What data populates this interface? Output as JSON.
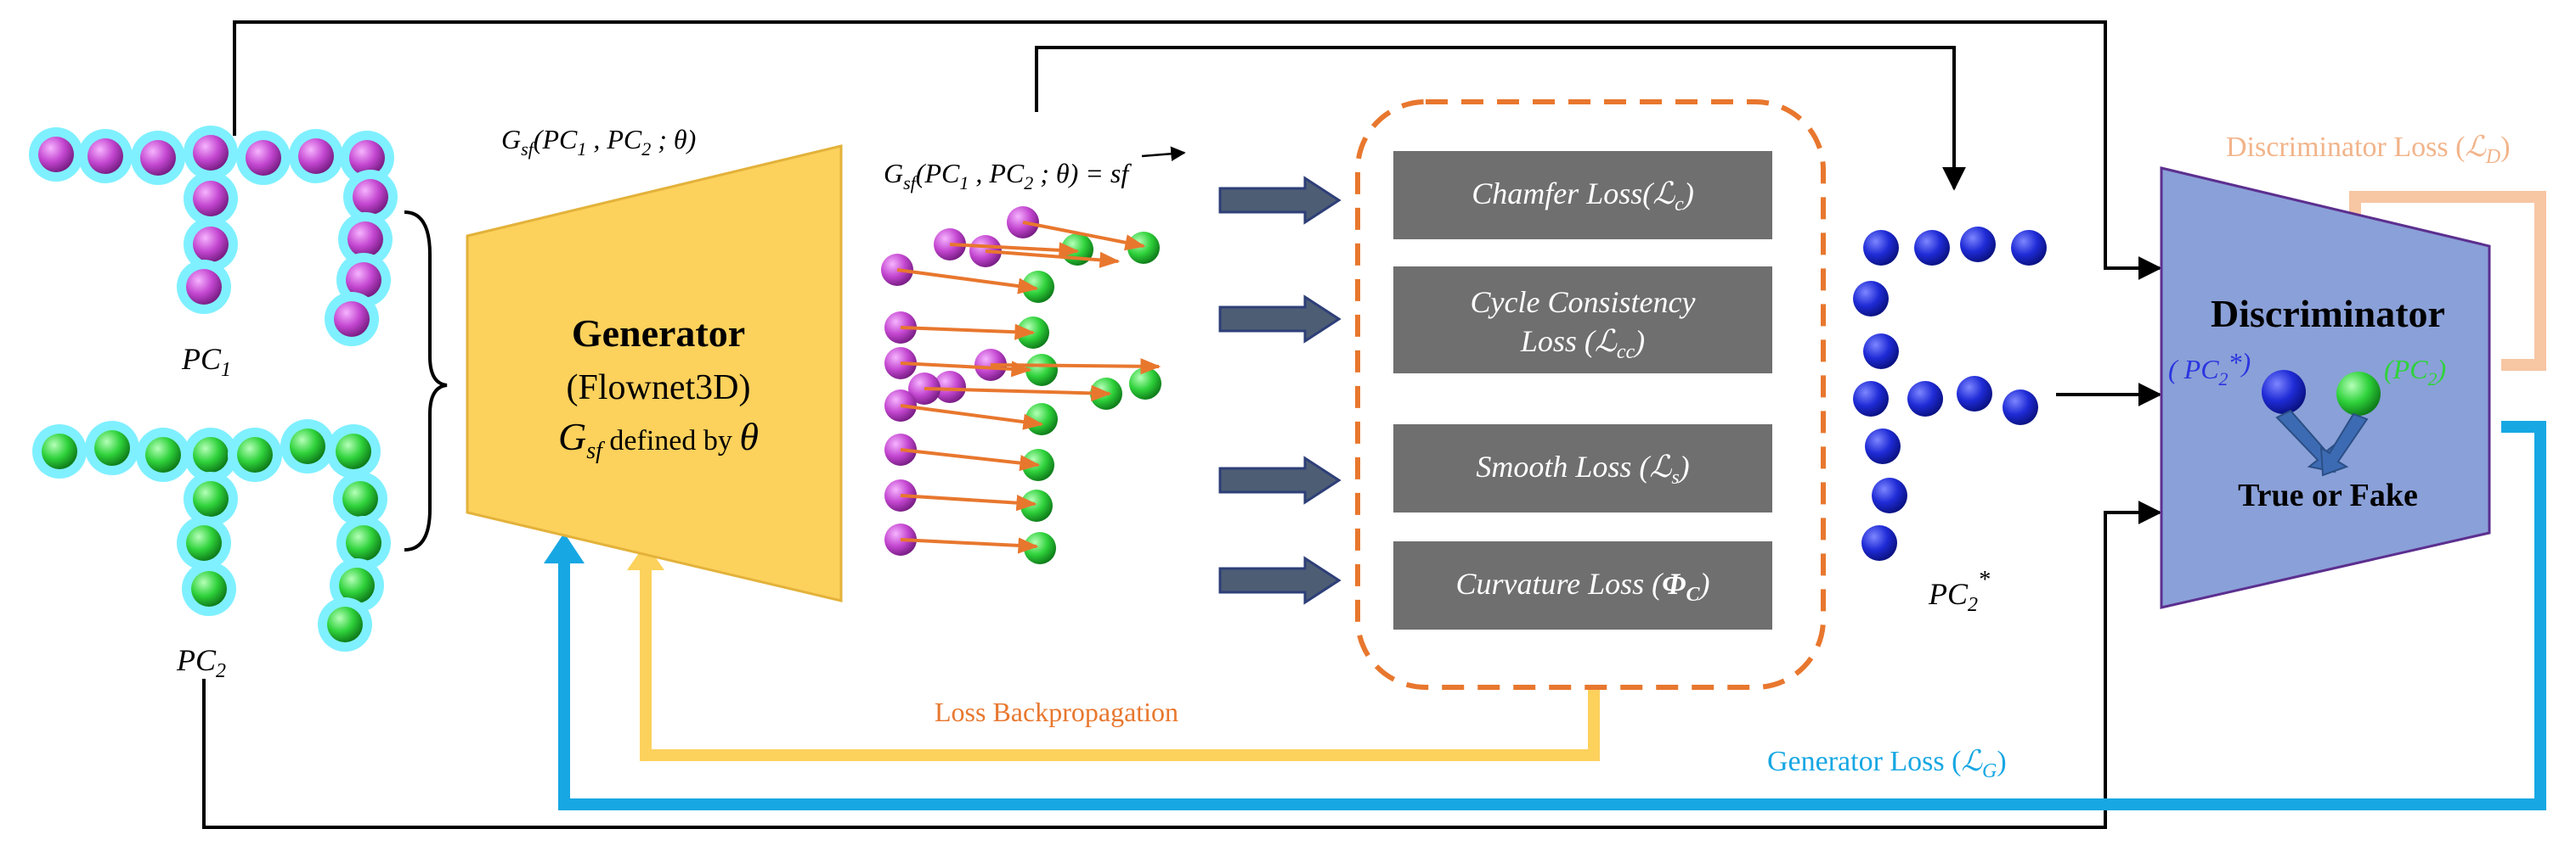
{
  "colors": {
    "magenta": "#c447d1",
    "green": "#2fd23b",
    "cyan_glow": "#7ff0ff",
    "blue_point": "#1f2bd6",
    "generator_fill": "#fcd15c",
    "discriminator_fill": "#8aa0d8",
    "loss_box": "#6f6f6f",
    "orange": "#e8772e",
    "cyan_line": "#17a7e3",
    "yellow_line": "#fcd15c",
    "peach_line": "#f7c6a3",
    "arrow_fill": "#4d5d74"
  },
  "inputs": {
    "pc1_label": "PC",
    "pc1_sub": "1",
    "pc2_label": "PC",
    "pc2_sub": "2"
  },
  "generator": {
    "formula_G": "G",
    "formula_sub": "sf",
    "formula_args": "(PC",
    "formula_sub1": "1",
    "formula_mid": " , PC",
    "formula_sub2": "2",
    "formula_end": " ; θ)",
    "title": "Generator",
    "subtitle": "(Flownet3D)",
    "desc_G": "G",
    "desc_sub": "sf",
    "desc_rest": " defined by ",
    "desc_theta": "θ"
  },
  "flow": {
    "formula_G": "G",
    "formula_sub": "sf",
    "formula_args": "(PC",
    "formula_sub1": "1",
    "formula_mid": " , PC",
    "formula_sub2": "2",
    "formula_end": " ; θ) = ",
    "formula_vec": "sf"
  },
  "losses": [
    {
      "line1": "Chamfer Loss(",
      "symbol": "ℒ",
      "sub": "c",
      "close": ")"
    },
    {
      "line1": "Cycle Consistency",
      "line2": "Loss (",
      "symbol": "ℒ",
      "sub": "cc",
      "close": ")"
    },
    {
      "line1": "Smooth Loss (",
      "symbol": "ℒ",
      "sub": "s",
      "close": ")"
    },
    {
      "line1": "Curvature Loss (",
      "symbol": "Φ",
      "sub": "C",
      "close": ")"
    }
  ],
  "output": {
    "label": "PC",
    "sub": "2",
    "sup": "*"
  },
  "discriminator": {
    "title": "Discriminator",
    "left_open": "( PC",
    "left_sub": "2",
    "left_star": "*)",
    "right_open": "(PC",
    "right_sub": "2",
    "right_close": ")",
    "verdict": "True or Fake",
    "loss_label": "Discriminator Loss (",
    "loss_symbol": "ℒ",
    "loss_sub": "D",
    "loss_close": ")"
  },
  "feedback": {
    "backprop_label": "Loss Backpropagation",
    "generator_loss_label": "Generator Loss (",
    "generator_loss_symbol": "ℒ",
    "generator_loss_sub": "G",
    "generator_loss_close": ")"
  }
}
